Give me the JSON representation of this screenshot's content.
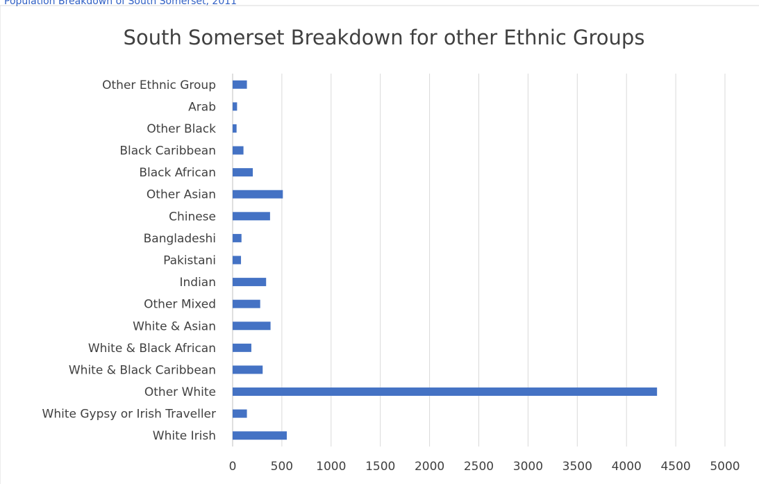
{
  "caption": "Population Breakdown of South Somerset, 2011",
  "chart_data": {
    "type": "bar",
    "orientation": "horizontal",
    "title": "South Somerset Breakdown for other Ethnic Groups",
    "xlabel": "",
    "ylabel": "",
    "xlim": [
      0,
      5000
    ],
    "xticks": [
      "0",
      "500",
      "1000",
      "1500",
      "2000",
      "2500",
      "3000",
      "3500",
      "4000",
      "4500",
      "5000"
    ],
    "grid": true,
    "legend": "none",
    "bar_color": "#4472c4",
    "gridline_color": "#d9d9d9",
    "categories": [
      "White Irish",
      "White Gypsy or Irish Traveller",
      "Other White",
      "White & Black Caribbean",
      "White & Black African",
      "White & Asian",
      "Other Mixed",
      "Indian",
      "Pakistani",
      "Bangladeshi",
      "Chinese",
      "Other Asian",
      "Black African",
      "Black Caribbean",
      "Other Black",
      "Arab",
      "Other Ethnic Group"
    ],
    "values": [
      550,
      145,
      4310,
      305,
      190,
      385,
      280,
      340,
      85,
      90,
      380,
      510,
      205,
      110,
      40,
      45,
      145
    ]
  }
}
